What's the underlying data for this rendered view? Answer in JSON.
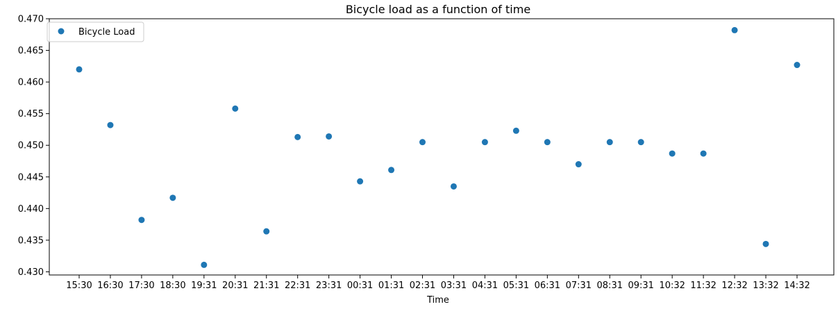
{
  "chart_data": {
    "type": "scatter",
    "title": "Bicycle load as a function of time",
    "xlabel": "Time",
    "ylabel": "",
    "x": [
      "15:30",
      "16:30",
      "17:30",
      "18:30",
      "19:31",
      "20:31",
      "21:31",
      "22:31",
      "23:31",
      "00:31",
      "01:31",
      "02:31",
      "03:31",
      "04:31",
      "05:31",
      "06:31",
      "07:31",
      "08:31",
      "09:31",
      "10:32",
      "11:32",
      "12:32",
      "13:32",
      "14:32"
    ],
    "series": [
      {
        "name": "Bicycle Load",
        "color": "#1f77b4",
        "values": [
          0.462,
          0.4532,
          0.4382,
          0.4417,
          0.4311,
          0.4558,
          0.4364,
          0.4513,
          0.4514,
          0.4443,
          0.4461,
          0.4505,
          0.4435,
          0.4505,
          0.4523,
          0.4505,
          0.447,
          0.4505,
          0.4505,
          0.4487,
          0.4487,
          0.4682,
          0.4344,
          0.4627
        ]
      }
    ],
    "yticks": [
      "0.430",
      "0.435",
      "0.440",
      "0.445",
      "0.450",
      "0.455",
      "0.460",
      "0.465",
      "0.470"
    ],
    "ylim": [
      0.4295,
      0.47
    ],
    "grid": false,
    "legend_position": "upper-left"
  }
}
